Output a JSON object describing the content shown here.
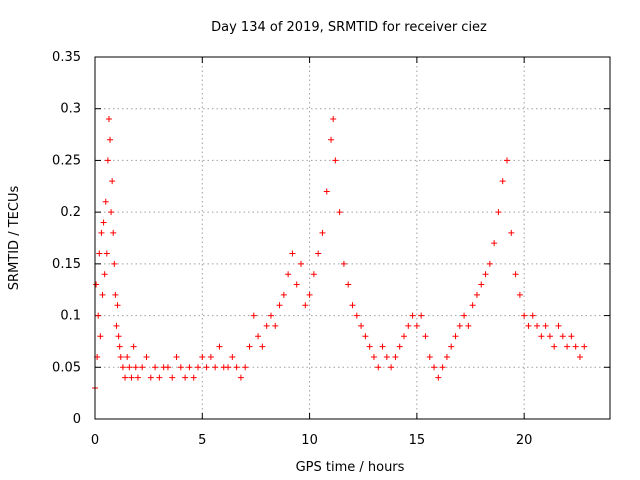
{
  "chart_data": {
    "type": "scatter",
    "title": "Day 134 of 2019, SRMTID for receiver ciez",
    "xlabel": "GPS time / hours",
    "ylabel": "SRMTID / TECUs",
    "xlim": [
      0,
      24
    ],
    "ylim": [
      0,
      0.35
    ],
    "xticks": [
      0,
      5,
      10,
      15,
      20
    ],
    "xtick_labels": [
      "0",
      "5",
      "10",
      "15",
      "20"
    ],
    "yticks": [
      0,
      0.05,
      0.1,
      0.15,
      0.2,
      0.25,
      0.3,
      0.35
    ],
    "ytick_labels": [
      "0",
      "0.05",
      "0.1",
      "0.15",
      "0.2",
      "0.25",
      "0.3",
      "0.35"
    ],
    "grid": true,
    "marker": "plus",
    "color": "#ff0000",
    "series": [
      {
        "name": "SRMTID",
        "points": [
          [
            0.0,
            0.03
          ],
          [
            0.05,
            0.13
          ],
          [
            0.1,
            0.06
          ],
          [
            0.15,
            0.1
          ],
          [
            0.2,
            0.16
          ],
          [
            0.25,
            0.08
          ],
          [
            0.3,
            0.18
          ],
          [
            0.35,
            0.12
          ],
          [
            0.4,
            0.19
          ],
          [
            0.45,
            0.14
          ],
          [
            0.5,
            0.21
          ],
          [
            0.55,
            0.16
          ],
          [
            0.6,
            0.25
          ],
          [
            0.65,
            0.29
          ],
          [
            0.7,
            0.27
          ],
          [
            0.75,
            0.2
          ],
          [
            0.8,
            0.23
          ],
          [
            0.85,
            0.18
          ],
          [
            0.9,
            0.15
          ],
          [
            0.95,
            0.12
          ],
          [
            1.0,
            0.09
          ],
          [
            1.05,
            0.11
          ],
          [
            1.1,
            0.08
          ],
          [
            1.15,
            0.07
          ],
          [
            1.2,
            0.06
          ],
          [
            1.3,
            0.05
          ],
          [
            1.4,
            0.04
          ],
          [
            1.5,
            0.06
          ],
          [
            1.6,
            0.05
          ],
          [
            1.7,
            0.04
          ],
          [
            1.8,
            0.07
          ],
          [
            1.9,
            0.05
          ],
          [
            2.0,
            0.04
          ],
          [
            2.2,
            0.05
          ],
          [
            2.4,
            0.06
          ],
          [
            2.6,
            0.04
          ],
          [
            2.8,
            0.05
          ],
          [
            3.0,
            0.04
          ],
          [
            3.2,
            0.05
          ],
          [
            3.4,
            0.05
          ],
          [
            3.6,
            0.04
          ],
          [
            3.8,
            0.06
          ],
          [
            4.0,
            0.05
          ],
          [
            4.2,
            0.04
          ],
          [
            4.4,
            0.05
          ],
          [
            4.6,
            0.04
          ],
          [
            4.8,
            0.05
          ],
          [
            5.0,
            0.06
          ],
          [
            5.2,
            0.05
          ],
          [
            5.4,
            0.06
          ],
          [
            5.6,
            0.05
          ],
          [
            5.8,
            0.07
          ],
          [
            6.0,
            0.05
          ],
          [
            6.2,
            0.05
          ],
          [
            6.4,
            0.06
          ],
          [
            6.6,
            0.05
          ],
          [
            6.8,
            0.04
          ],
          [
            7.0,
            0.05
          ],
          [
            7.2,
            0.07
          ],
          [
            7.4,
            0.1
          ],
          [
            7.6,
            0.08
          ],
          [
            7.8,
            0.07
          ],
          [
            8.0,
            0.09
          ],
          [
            8.2,
            0.1
          ],
          [
            8.4,
            0.09
          ],
          [
            8.6,
            0.11
          ],
          [
            8.8,
            0.12
          ],
          [
            9.0,
            0.14
          ],
          [
            9.2,
            0.16
          ],
          [
            9.4,
            0.13
          ],
          [
            9.6,
            0.15
          ],
          [
            9.8,
            0.11
          ],
          [
            10.0,
            0.12
          ],
          [
            10.2,
            0.14
          ],
          [
            10.4,
            0.16
          ],
          [
            10.6,
            0.18
          ],
          [
            10.8,
            0.22
          ],
          [
            11.0,
            0.27
          ],
          [
            11.1,
            0.29
          ],
          [
            11.2,
            0.25
          ],
          [
            11.4,
            0.2
          ],
          [
            11.6,
            0.15
          ],
          [
            11.8,
            0.13
          ],
          [
            12.0,
            0.11
          ],
          [
            12.2,
            0.1
          ],
          [
            12.4,
            0.09
          ],
          [
            12.6,
            0.08
          ],
          [
            12.8,
            0.07
          ],
          [
            13.0,
            0.06
          ],
          [
            13.2,
            0.05
          ],
          [
            13.4,
            0.07
          ],
          [
            13.6,
            0.06
          ],
          [
            13.8,
            0.05
          ],
          [
            14.0,
            0.06
          ],
          [
            14.2,
            0.07
          ],
          [
            14.4,
            0.08
          ],
          [
            14.6,
            0.09
          ],
          [
            14.8,
            0.1
          ],
          [
            15.0,
            0.09
          ],
          [
            15.2,
            0.1
          ],
          [
            15.4,
            0.08
          ],
          [
            15.6,
            0.06
          ],
          [
            15.8,
            0.05
          ],
          [
            16.0,
            0.04
          ],
          [
            16.2,
            0.05
          ],
          [
            16.4,
            0.06
          ],
          [
            16.6,
            0.07
          ],
          [
            16.8,
            0.08
          ],
          [
            17.0,
            0.09
          ],
          [
            17.2,
            0.1
          ],
          [
            17.4,
            0.09
          ],
          [
            17.6,
            0.11
          ],
          [
            17.8,
            0.12
          ],
          [
            18.0,
            0.13
          ],
          [
            18.2,
            0.14
          ],
          [
            18.4,
            0.15
          ],
          [
            18.6,
            0.17
          ],
          [
            18.8,
            0.2
          ],
          [
            19.0,
            0.23
          ],
          [
            19.2,
            0.25
          ],
          [
            19.4,
            0.18
          ],
          [
            19.6,
            0.14
          ],
          [
            19.8,
            0.12
          ],
          [
            20.0,
            0.1
          ],
          [
            20.2,
            0.09
          ],
          [
            20.4,
            0.1
          ],
          [
            20.6,
            0.09
          ],
          [
            20.8,
            0.08
          ],
          [
            21.0,
            0.09
          ],
          [
            21.2,
            0.08
          ],
          [
            21.4,
            0.07
          ],
          [
            21.6,
            0.09
          ],
          [
            21.8,
            0.08
          ],
          [
            22.0,
            0.07
          ],
          [
            22.2,
            0.08
          ],
          [
            22.4,
            0.07
          ],
          [
            22.6,
            0.06
          ],
          [
            22.8,
            0.07
          ]
        ]
      }
    ]
  }
}
